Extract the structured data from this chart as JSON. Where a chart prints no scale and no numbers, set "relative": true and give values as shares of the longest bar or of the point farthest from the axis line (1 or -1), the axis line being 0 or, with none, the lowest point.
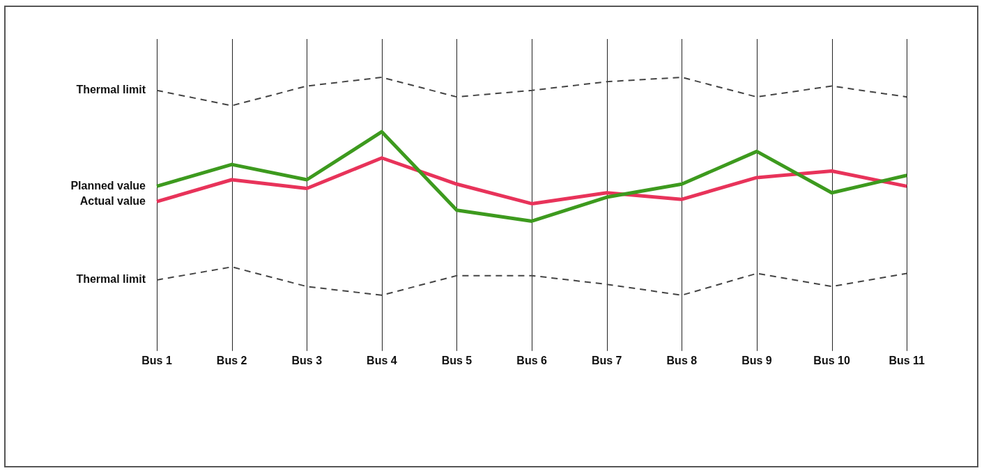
{
  "chart_data": {
    "type": "line",
    "relative": true,
    "categories": [
      "Bus 1",
      "Bus 2",
      "Bus 3",
      "Bus 4",
      "Bus 5",
      "Bus 6",
      "Bus 7",
      "Bus 8",
      "Bus 9",
      "Bus 10",
      "Bus 11"
    ],
    "series": [
      {
        "name": "Thermal limit",
        "color": "#444444",
        "line_style": "dashed",
        "values": [
          0.94,
          0.87,
          0.96,
          1.0,
          0.91,
          0.94,
          0.98,
          1.0,
          0.91,
          0.96,
          0.91
        ]
      },
      {
        "name": "Planned value",
        "color": "#3d9a1e",
        "line_style": "solid",
        "values": [
          0.5,
          0.6,
          0.53,
          0.75,
          0.39,
          0.34,
          0.45,
          0.51,
          0.66,
          0.47,
          0.55
        ]
      },
      {
        "name": "Actual value",
        "color": "#e8335a",
        "line_style": "solid",
        "values": [
          0.43,
          0.53,
          0.49,
          0.63,
          0.51,
          0.42,
          0.47,
          0.44,
          0.54,
          0.57,
          0.5
        ]
      },
      {
        "name": "Thermal limit",
        "color": "#444444",
        "line_style": "dashed",
        "values": [
          0.07,
          0.13,
          0.04,
          0.0,
          0.09,
          0.09,
          0.05,
          0.0,
          0.1,
          0.04,
          0.1
        ]
      }
    ],
    "grid": "x",
    "legend": false,
    "marker": "none"
  }
}
